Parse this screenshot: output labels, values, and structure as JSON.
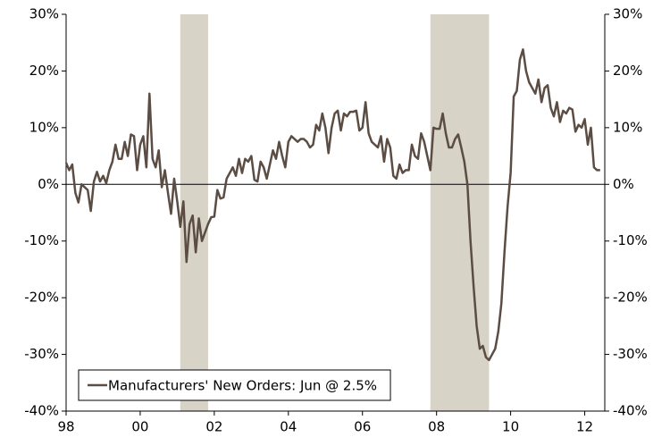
{
  "chart_data": {
    "type": "line",
    "categories": [
      "98",
      null,
      null,
      null,
      null,
      null,
      null,
      null,
      null,
      null,
      null,
      null,
      null,
      null,
      null,
      null,
      null,
      null,
      null,
      null,
      null,
      null,
      null,
      null,
      "00",
      null,
      null,
      null,
      null,
      null,
      null,
      null,
      null,
      null,
      null,
      null,
      null,
      null,
      null,
      null,
      null,
      null,
      null,
      null,
      null,
      null,
      null,
      null,
      "02",
      null,
      null,
      null,
      null,
      null,
      null,
      null,
      null,
      null,
      null,
      null,
      null,
      null,
      null,
      null,
      null,
      null,
      null,
      null,
      null,
      null,
      null,
      null,
      "04",
      null,
      null,
      null,
      null,
      null,
      null,
      null,
      null,
      null,
      null,
      null,
      null,
      null,
      null,
      null,
      null,
      null,
      null,
      null,
      null,
      null,
      null,
      null,
      "06",
      null,
      null,
      null,
      null,
      null,
      null,
      null,
      null,
      null,
      null,
      null,
      null,
      null,
      null,
      null,
      null,
      null,
      null,
      null,
      null,
      null,
      null,
      null,
      "08",
      null,
      null,
      null,
      null,
      null,
      null,
      null,
      null,
      null,
      null,
      null,
      null,
      null,
      null,
      null,
      null,
      null,
      null,
      null,
      null,
      null,
      null,
      null,
      "10",
      null,
      null,
      null,
      null,
      null,
      null,
      null,
      null,
      null,
      null,
      null,
      null,
      null,
      null,
      null,
      null,
      null,
      null,
      null,
      null,
      null,
      null,
      null,
      "12",
      null,
      null,
      null,
      null,
      null
    ],
    "series": [
      {
        "name": "Manufacturers' New Orders: Jun @ 2.5%",
        "color": "#5b4d43",
        "values": [
          3.8,
          2.5,
          3.5,
          -1.5,
          -3.2,
          0,
          -0.5,
          -1,
          -4.7,
          0.5,
          2.2,
          0.5,
          1.5,
          0.2,
          2.5,
          4,
          7,
          4.5,
          4.5,
          7.5,
          5,
          8.8,
          8.5,
          2.5,
          7,
          8.5,
          3,
          16,
          4.5,
          3,
          6,
          -0.5,
          2.5,
          -1.5,
          -5.2,
          1,
          -3,
          -7.5,
          -3,
          -13.7,
          -7,
          -5.5,
          -12,
          -6,
          -10,
          -8.5,
          -7,
          -5.8,
          -5.7,
          -1,
          -2.5,
          -2.3,
          1,
          2,
          3,
          1.5,
          4.5,
          2,
          4.5,
          4,
          5,
          0.8,
          0.5,
          4,
          3,
          1,
          3.5,
          6,
          4.5,
          7.5,
          5,
          3,
          7.5,
          8.5,
          8,
          7.5,
          8,
          8,
          7.5,
          6.5,
          7,
          10.5,
          9.5,
          12.5,
          10,
          5.5,
          10,
          12.5,
          13,
          9.5,
          12.5,
          12,
          12.8,
          12.8,
          13,
          9.5,
          10,
          14.5,
          9,
          7.5,
          7,
          6.5,
          8.5,
          4,
          8,
          6.5,
          1.5,
          1,
          3.5,
          2,
          2.5,
          2.5,
          7,
          5,
          4.5,
          9,
          7.5,
          5,
          2.5,
          10,
          9.8,
          9.8,
          12.5,
          9,
          6.5,
          6.5,
          8,
          8.8,
          6.5,
          4,
          0,
          -10,
          -18,
          -25,
          -29,
          -28.5,
          -30.5,
          -31,
          -30,
          -29,
          -26,
          -21,
          -12,
          -4,
          2,
          15.5,
          16.5,
          22,
          23.8,
          20,
          18,
          17,
          16,
          18.5,
          14.5,
          17,
          17.5,
          13.5,
          12,
          14.5,
          11,
          13,
          12.5,
          13.5,
          13.2,
          9.3,
          10.5,
          10,
          11.5,
          7,
          10,
          3,
          2.5,
          2.5
        ]
      }
    ],
    "recessions": [
      [
        37,
        46
      ],
      [
        118,
        137
      ]
    ],
    "recession_color": "#d8d3c7",
    "ylim": [
      -40,
      30
    ],
    "yticks": [
      {
        "value": 30,
        "label": "30%"
      },
      {
        "value": 20,
        "label": "20%"
      },
      {
        "value": 10,
        "label": "10%"
      },
      {
        "value": 0,
        "label": "0%"
      },
      {
        "value": -10,
        "label": "-10%"
      },
      {
        "value": -20,
        "label": "-20%"
      },
      {
        "value": -30,
        "label": "-30%"
      },
      {
        "value": -40,
        "label": "-40%"
      }
    ],
    "y2lim": [
      -40,
      30
    ],
    "y2ticks": [
      {
        "value": 30,
        "label": "30%"
      },
      {
        "value": 20,
        "label": "20%"
      },
      {
        "value": 10,
        "label": "10%"
      },
      {
        "value": 0,
        "label": "0%"
      },
      {
        "value": -10,
        "label": "-10%"
      },
      {
        "value": -20,
        "label": "-20%"
      },
      {
        "value": -30,
        "label": "-30%"
      },
      {
        "value": -40,
        "label": "-40%"
      }
    ],
    "grid": false,
    "legend": "lower left"
  }
}
